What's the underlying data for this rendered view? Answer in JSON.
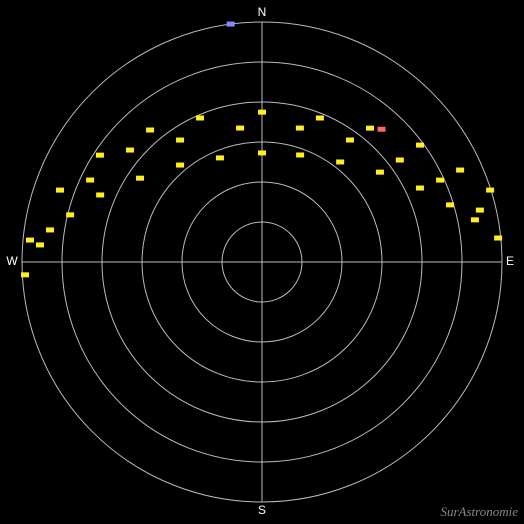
{
  "chart_data": {
    "type": "polar_scatter",
    "directions": {
      "north": "N",
      "east": "E",
      "south": "S",
      "west": "W"
    },
    "watermark": "SurAstronomie",
    "ylim": [
      90,
      0
    ],
    "yticks": [
      0,
      15,
      30,
      45,
      60,
      75
    ],
    "grid": true,
    "series": [
      {
        "color": "#ffee22",
        "x": [
          266.9,
          274.4,
          283.8,
          292.5,
          304.5,
          319.8,
          338.0,
          0,
          19.6,
          38.0,
          52.7,
          64.9,
          73.1,
          78.8,
          84.2
        ],
        "values": [
          1,
          6.5,
          15.9,
          24.3,
          34.5,
          42.4,
          47.9,
          49.1,
          47.4,
          42.4,
          34.4,
          24.6,
          16.3,
          8.6,
          1.0
        ]
      },
      {
        "color": "#ffee22",
        "x": [
          275.4,
          289.6,
          303.4,
          319.7,
          336.7,
          0,
          21.9,
          38.9,
          53.5,
          65.1,
          72.5
        ],
        "values": [
          2.6,
          9.6,
          17.2,
          25.1,
          31.2,
          33.8,
          31.8,
          25.5,
          16.3,
          8.1,
          0.3
        ]
      },
      {
        "color": "#ffee22",
        "x": [
          278.6,
          295.5,
          310.3,
          326.1,
          350.7,
          15.8,
          35.8,
          53.5,
          65.3,
          76.6
        ],
        "values": [
          9.6,
          18.6,
          25.1,
          34.9,
          39.1,
          37.8,
          33.6,
          25.7,
          16.5,
          6.0
        ]
      },
      {
        "color": "#ff6666",
        "x": [
          42
        ],
        "values": [
          23
        ]
      },
      {
        "color": "#8888ff",
        "x": [
          352.5
        ],
        "values": [
          0
        ]
      }
    ]
  }
}
